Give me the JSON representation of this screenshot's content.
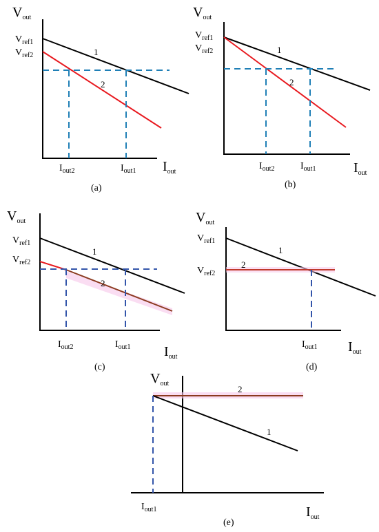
{
  "colors": {
    "axis": "#000000",
    "line_1": "#000000",
    "line_2_red": "#e8191f",
    "line_2_brown": "#8b3a1f",
    "highlight_pink": "#f7c6ea",
    "dash_cyan": "#1f7fb6",
    "dash_blue": "#3355aa"
  },
  "labels": {
    "v_main": "V",
    "v_sub": "out",
    "i_main": "I",
    "i_sub": "out",
    "vref_main": "V",
    "vref1_sub": "ref1",
    "vref2_sub": "ref2",
    "iout_main": "I",
    "iout1_sub": "out1",
    "iout2_sub": "out2",
    "line1": "1",
    "line2": "2"
  },
  "panels": [
    {
      "id": "a",
      "caption": "(a)",
      "line2_color": "red",
      "intersections": [
        "I_out2",
        "I_out1"
      ]
    },
    {
      "id": "b",
      "caption": "(b)",
      "line2_color": "red",
      "intersections": [
        "I_out2",
        "I_out1"
      ]
    },
    {
      "id": "c",
      "caption": "(c)",
      "line2_color": "brown",
      "intersections": [
        "I_out2",
        "I_out1"
      ]
    },
    {
      "id": "d",
      "caption": "(d)",
      "line2_color": "brown",
      "intersections": [
        "I_out1"
      ]
    },
    {
      "id": "e",
      "caption": "(e)",
      "line2_color": "brown",
      "intersections": [
        "I_out1"
      ]
    }
  ]
}
